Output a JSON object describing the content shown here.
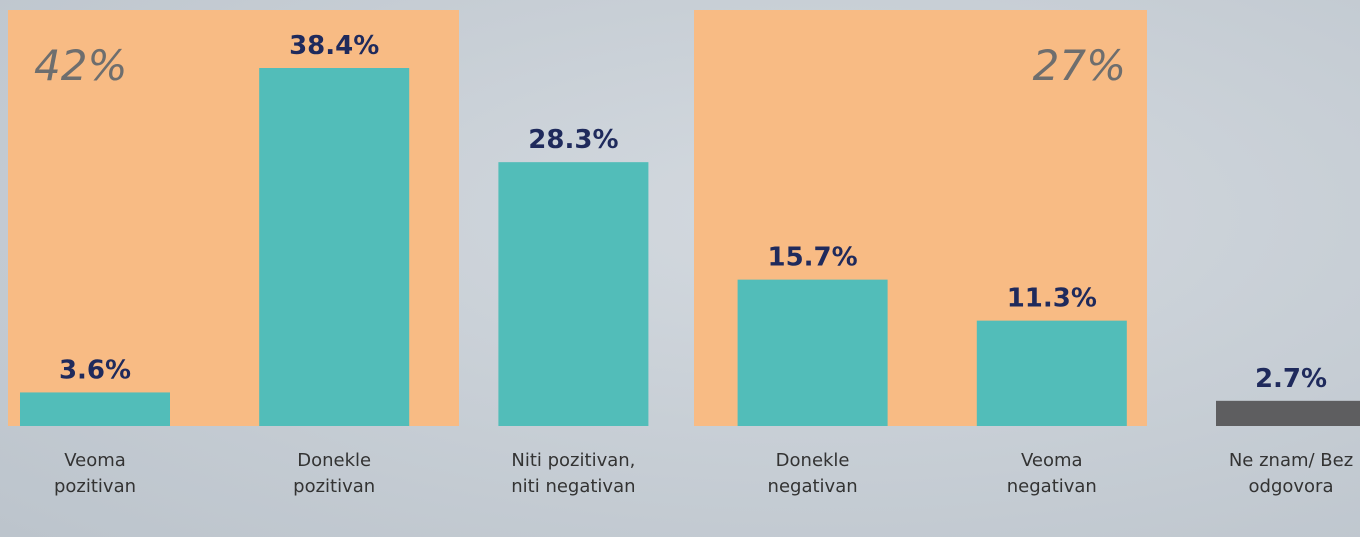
{
  "chart_data": {
    "type": "bar",
    "categories": [
      "Veoma pozitivan",
      "Donekle pozitivan",
      "Niti pozitivan, niti negativan",
      "Donekle negativan",
      "Veoma negativan",
      "Ne znam/ Bez odgovora"
    ],
    "values": [
      3.6,
      38.4,
      28.3,
      15.7,
      11.3,
      2.7
    ],
    "value_labels": [
      "3.6%",
      "38.4%",
      "28.3%",
      "15.7%",
      "11.3%",
      "2.7%"
    ],
    "colors": [
      "#52bdb9",
      "#52bdb9",
      "#52bdb9",
      "#52bdb9",
      "#52bdb9",
      "#5e5e60"
    ],
    "annotations": [
      "42%",
      "27%"
    ]
  }
}
